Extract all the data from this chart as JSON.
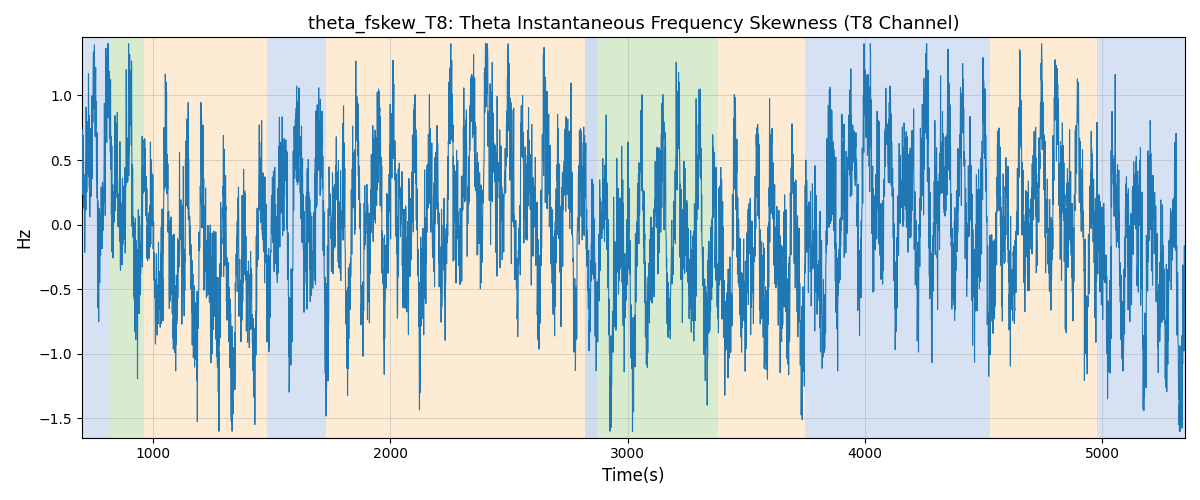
{
  "title": "theta_fskew_T8: Theta Instantaneous Frequency Skewness (T8 Channel)",
  "xlabel": "Time(s)",
  "ylabel": "Hz",
  "xlim": [
    700,
    5350
  ],
  "ylim": [
    -1.65,
    1.45
  ],
  "line_color": "#1f77b4",
  "line_width": 0.8,
  "bg_bands": [
    {
      "xmin": 700,
      "xmax": 820,
      "color": "#aec6e8",
      "alpha": 0.5
    },
    {
      "xmin": 820,
      "xmax": 960,
      "color": "#b2d9a0",
      "alpha": 0.5
    },
    {
      "xmin": 960,
      "xmax": 1480,
      "color": "#fdd9a8",
      "alpha": 0.5
    },
    {
      "xmin": 1480,
      "xmax": 1730,
      "color": "#aec6e8",
      "alpha": 0.5
    },
    {
      "xmin": 1730,
      "xmax": 2820,
      "color": "#fdd9a8",
      "alpha": 0.5
    },
    {
      "xmin": 2820,
      "xmax": 2870,
      "color": "#aec6e8",
      "alpha": 0.6
    },
    {
      "xmin": 2870,
      "xmax": 3380,
      "color": "#b2d9a0",
      "alpha": 0.5
    },
    {
      "xmin": 3380,
      "xmax": 3750,
      "color": "#fdd9a8",
      "alpha": 0.5
    },
    {
      "xmin": 3750,
      "xmax": 4530,
      "color": "#aec6e8",
      "alpha": 0.5
    },
    {
      "xmin": 4530,
      "xmax": 4980,
      "color": "#fdd9a8",
      "alpha": 0.5
    },
    {
      "xmin": 4980,
      "xmax": 5350,
      "color": "#aec6e8",
      "alpha": 0.5
    }
  ],
  "grid_color": "#b0b0b0",
  "grid_alpha": 0.7,
  "yticks": [
    -1.5,
    -1.0,
    -0.5,
    0.0,
    0.5,
    1.0
  ],
  "xticks": [
    1000,
    2000,
    3000,
    4000,
    5000
  ],
  "seed": 42,
  "n_points": 5200,
  "t_start": 700,
  "t_end": 5350,
  "figsize": [
    12.0,
    5.0
  ],
  "dpi": 100
}
